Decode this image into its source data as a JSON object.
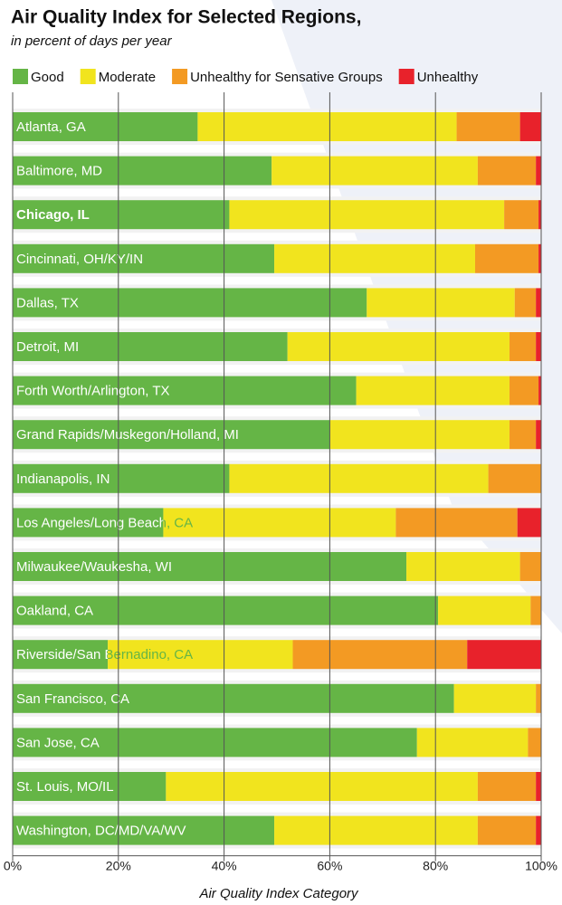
{
  "chart_data": {
    "type": "bar",
    "orientation": "horizontal",
    "stacked": true,
    "title": "Air Quality Index for Selected Regions,",
    "subtitle": "in percent of days per year",
    "x_label": "Air Quality Index Category",
    "categories": [
      "Atlanta, GA",
      "Baltimore, MD",
      "Chicago, IL",
      "Cincinnati, OH/KY/IN",
      "Dallas, TX",
      "Detroit, MI",
      "Forth Worth/Arlington, TX",
      "Grand Rapids/Muskegon/Holland, MI",
      "Indianapolis, IN",
      "Los Angeles/Long Beach, CA",
      "Milwaukee/Waukesha, WI",
      "Oakland, CA",
      "Riverside/San Bernadino, CA",
      "San Francisco, CA",
      "San Jose, CA",
      "St. Louis, MO/IL",
      "Washington, DC/MD/VA/WV"
    ],
    "highlight": "Chicago, IL",
    "series": [
      {
        "name": "Good",
        "color": "#65b546",
        "values": [
          35,
          49,
          41,
          49.5,
          67,
          52,
          65,
          60,
          41,
          28.5,
          74.5,
          80.5,
          18,
          83.5,
          76.5,
          29,
          49.5
        ]
      },
      {
        "name": "Moderate",
        "color": "#f1e41e",
        "values": [
          49,
          39,
          52,
          38,
          28,
          42,
          29,
          34,
          49,
          44,
          21.5,
          17.5,
          35,
          15.5,
          21,
          59,
          38.5
        ]
      },
      {
        "name": "Unhealthy for Sensative Groups",
        "color": "#f39a23",
        "values": [
          12,
          11,
          6.5,
          12,
          4,
          5,
          5.5,
          5,
          10,
          23,
          4,
          2,
          33,
          1,
          2.5,
          11,
          11
        ]
      },
      {
        "name": "Unhealthy",
        "color": "#e8222b",
        "values": [
          4,
          1,
          0.5,
          0.5,
          1,
          1,
          0.5,
          1,
          0,
          4.5,
          0,
          0,
          14,
          0,
          0,
          1,
          1
        ]
      }
    ],
    "xlim": [
      0,
      100
    ],
    "xticks": [
      {
        "value": 0,
        "label": "0%"
      },
      {
        "value": 20,
        "label": "20%"
      },
      {
        "value": 40,
        "label": "40%"
      },
      {
        "value": 60,
        "label": "60%"
      },
      {
        "value": 80,
        "label": "80%"
      },
      {
        "value": 100,
        "label": "100%"
      }
    ],
    "grid": true
  }
}
